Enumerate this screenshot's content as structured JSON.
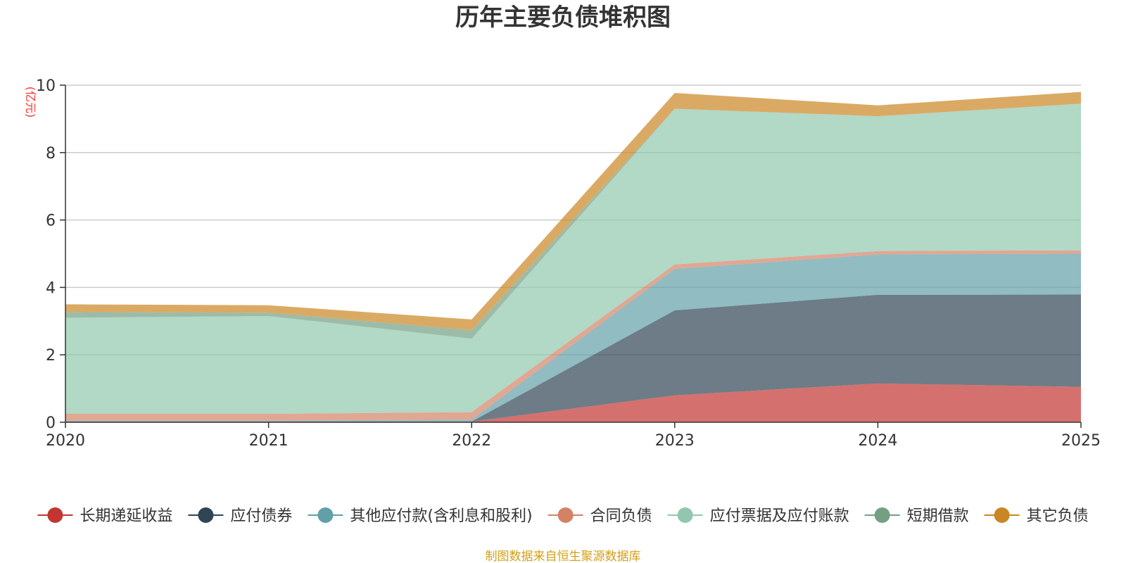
{
  "chart_data": {
    "type": "area",
    "stacked": true,
    "title": "历年主要负债堆积图",
    "ylabel": "(亿元)",
    "xlabel": "",
    "categories": [
      "2020",
      "2021",
      "2022",
      "2023",
      "2024",
      "2025"
    ],
    "ylim": [
      0,
      10
    ],
    "yticks": [
      "0",
      "2",
      "4",
      "6",
      "8",
      "10"
    ],
    "grid": true,
    "legend_position": "bottom",
    "series": [
      {
        "name": "长期递延收益",
        "color": "#c23531",
        "values": [
          0.02,
          0.02,
          0.02,
          0.8,
          1.15,
          1.05
        ]
      },
      {
        "name": "应付债券",
        "color": "#2f4554",
        "values": [
          0,
          0,
          0,
          2.52,
          2.63,
          2.74
        ]
      },
      {
        "name": "其他应付款(含利息和股利)",
        "color": "#61a0a8",
        "values": [
          0.03,
          0.03,
          0.06,
          1.23,
          1.2,
          1.21
        ]
      },
      {
        "name": "合同负债",
        "color": "#d48265",
        "values": [
          0.2,
          0.2,
          0.22,
          0.13,
          0.1,
          0.1
        ]
      },
      {
        "name": "应付票据及应付账款",
        "color": "#91c7ae",
        "values": [
          2.85,
          2.9,
          2.18,
          4.62,
          4.0,
          4.35
        ]
      },
      {
        "name": "短期借款",
        "color": "#749f83",
        "values": [
          0.17,
          0.1,
          0.25,
          0,
          0,
          0
        ]
      },
      {
        "name": "其它负债",
        "color": "#ca8622",
        "values": [
          0.23,
          0.22,
          0.32,
          0.47,
          0.32,
          0.35
        ]
      }
    ]
  },
  "footer": {
    "source": "制图数据来自恒生聚源数据库"
  }
}
